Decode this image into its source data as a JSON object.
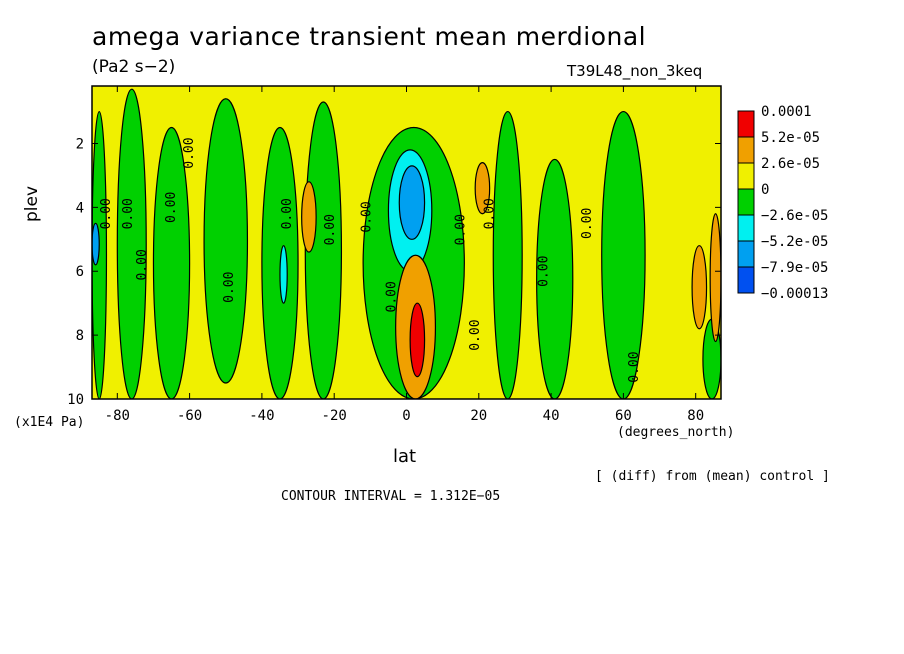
{
  "chart_data": {
    "type": "heatmap",
    "title": "amega variance transient mean merdional",
    "units_label": "(Pa2 s−2)",
    "run_label": "T39L48_non_3keq",
    "xlabel": "lat",
    "x_unit_label": "(degrees_north)",
    "ylabel": "plev",
    "y_unit_label": "(x1E4 Pa)",
    "note": "[ (diff) from (mean) control ]",
    "contour_interval_text": "CONTOUR INTERVAL = 1.312E−05",
    "xlim": [
      -87,
      87
    ],
    "ylim": [
      10,
      0.2
    ],
    "x_ticks": [
      -80,
      -60,
      -40,
      -20,
      0,
      20,
      40,
      60,
      80
    ],
    "y_ticks": [
      2,
      4,
      6,
      8,
      10
    ],
    "legend": {
      "labels": [
        "0.0001",
        "5.2e-05",
        "2.6e-05",
        "0",
        "−2.6e-05",
        "−5.2e-05",
        "−7.9e-05",
        "−0.00013"
      ],
      "colors": [
        "#f00000",
        "#f0a000",
        "#f0f000",
        "#00d000",
        "#00f0f0",
        "#00a0f0",
        "#0050f0"
      ]
    },
    "background_level_color": "#f0f000",
    "regions": [
      {
        "level": 0,
        "color": "#00d000",
        "x": [
          -87,
          -83
        ],
        "y": [
          1.0,
          10
        ]
      },
      {
        "level": -2,
        "color": "#00a0f0",
        "x": [
          -87,
          -85
        ],
        "y": [
          4.5,
          5.8
        ]
      },
      {
        "level": 0,
        "color": "#00d000",
        "x": [
          -80,
          -72
        ],
        "y": [
          0.3,
          10
        ]
      },
      {
        "level": 0,
        "color": "#00d000",
        "x": [
          -70,
          -60
        ],
        "y": [
          1.5,
          10
        ]
      },
      {
        "level": 0,
        "color": "#00d000",
        "x": [
          -56,
          -44
        ],
        "y": [
          0.6,
          9.5
        ]
      },
      {
        "level": 0,
        "color": "#00d000",
        "x": [
          -40,
          -30
        ],
        "y": [
          1.5,
          10
        ]
      },
      {
        "level": -1,
        "color": "#00f0f0",
        "x": [
          -35,
          -33
        ],
        "y": [
          5.2,
          7.0
        ]
      },
      {
        "level": 0,
        "color": "#00d000",
        "x": [
          -28,
          -18
        ],
        "y": [
          0.7,
          10
        ]
      },
      {
        "level": 1,
        "color": "#f0a000",
        "x": [
          -29,
          -25
        ],
        "y": [
          3.2,
          5.4
        ]
      },
      {
        "level": 0,
        "color": "#00d000",
        "x": [
          -12,
          16
        ],
        "y": [
          1.5,
          10
        ]
      },
      {
        "level": -1,
        "color": "#00f0f0",
        "x": [
          -5,
          7
        ],
        "y": [
          2.2,
          6.0
        ]
      },
      {
        "level": -2,
        "color": "#00a0f0",
        "x": [
          -2,
          5
        ],
        "y": [
          2.7,
          5.0
        ]
      },
      {
        "level": 1,
        "color": "#f0a000",
        "x": [
          -3,
          8
        ],
        "y": [
          5.5,
          10
        ]
      },
      {
        "level": 2,
        "color": "#f00000",
        "x": [
          1,
          5
        ],
        "y": [
          7.0,
          9.3
        ]
      },
      {
        "level": 1,
        "color": "#f0a000",
        "x": [
          19,
          23
        ],
        "y": [
          2.6,
          4.2
        ]
      },
      {
        "level": 0,
        "color": "#00d000",
        "x": [
          24,
          32
        ],
        "y": [
          1.0,
          10
        ]
      },
      {
        "level": 0,
        "color": "#00d000",
        "x": [
          36,
          46
        ],
        "y": [
          2.5,
          10
        ]
      },
      {
        "level": 0,
        "color": "#00d000",
        "x": [
          54,
          66
        ],
        "y": [
          1.0,
          10
        ]
      },
      {
        "level": 1,
        "color": "#f0a000",
        "x": [
          79,
          83
        ],
        "y": [
          5.2,
          7.8
        ]
      },
      {
        "level": 0,
        "color": "#00d000",
        "x": [
          82,
          87
        ],
        "y": [
          7.5,
          10
        ]
      },
      {
        "level": 1,
        "color": "#f0a000",
        "x": [
          84,
          87
        ],
        "y": [
          4.2,
          8.2
        ]
      }
    ],
    "contour_labels": [
      {
        "text": "0.00",
        "x": -82,
        "y": 4.2
      },
      {
        "text": "0.00",
        "x": -76,
        "y": 4.2
      },
      {
        "text": "0.00",
        "x": -72,
        "y": 5.8
      },
      {
        "text": "0.00",
        "x": -59,
        "y": 2.3
      },
      {
        "text": "0.00",
        "x": -64,
        "y": 4.0
      },
      {
        "text": "0.00",
        "x": -48,
        "y": 6.5
      },
      {
        "text": "0.00",
        "x": -32,
        "y": 4.2
      },
      {
        "text": "0.00",
        "x": -20,
        "y": 4.7
      },
      {
        "text": "0.00",
        "x": -10,
        "y": 4.3
      },
      {
        "text": "0.00",
        "x": -3,
        "y": 6.8
      },
      {
        "text": "0.00",
        "x": 16,
        "y": 4.7
      },
      {
        "text": "0.00",
        "x": 24,
        "y": 4.2
      },
      {
        "text": "0.00",
        "x": 20,
        "y": 8.0
      },
      {
        "text": "0.00",
        "x": 39,
        "y": 6.0
      },
      {
        "text": "0.00",
        "x": 51,
        "y": 4.5
      },
      {
        "text": "0.00",
        "x": 64,
        "y": 9.0
      }
    ]
  }
}
